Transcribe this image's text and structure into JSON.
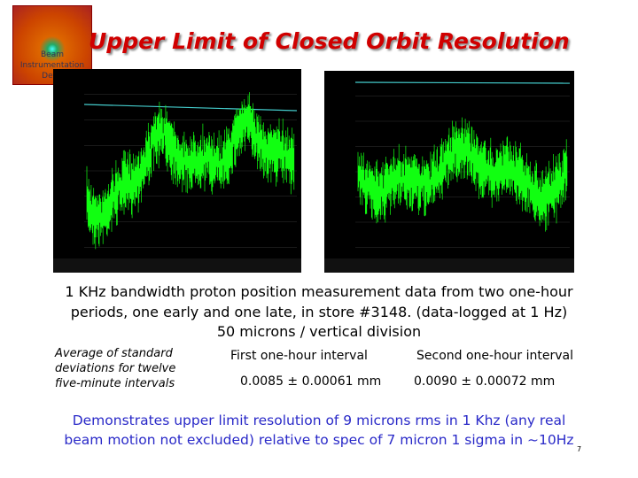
{
  "logo": {
    "lines": [
      "Beam",
      "Instrumentation",
      "Depa"
    ]
  },
  "title": "Upper Limit of Closed Orbit Resolution",
  "caption": [
    "1 KHz bandwidth proton position measurement data from two one-hour",
    "periods, one early and one late, in store #3148. (data-logged at 1 Hz)",
    "50 microns / vertical division"
  ],
  "note": [
    "Average of standard",
    "deviations for twelve",
    "five-minute intervals"
  ],
  "columns": [
    {
      "header": "First one-hour interval",
      "value": "0.0085 ± 0.00061 mm"
    },
    {
      "header": "Second one-hour interval",
      "value": "0.0090 ± 0.00072 mm"
    }
  ],
  "conclusion": [
    "Demonstrates upper limit resolution of 9 microns rms in 1 Khz (any real",
    "beam motion not excluded) relative to spec of 7 micron 1 sigma in ~10Hz"
  ],
  "page_number": "7"
}
